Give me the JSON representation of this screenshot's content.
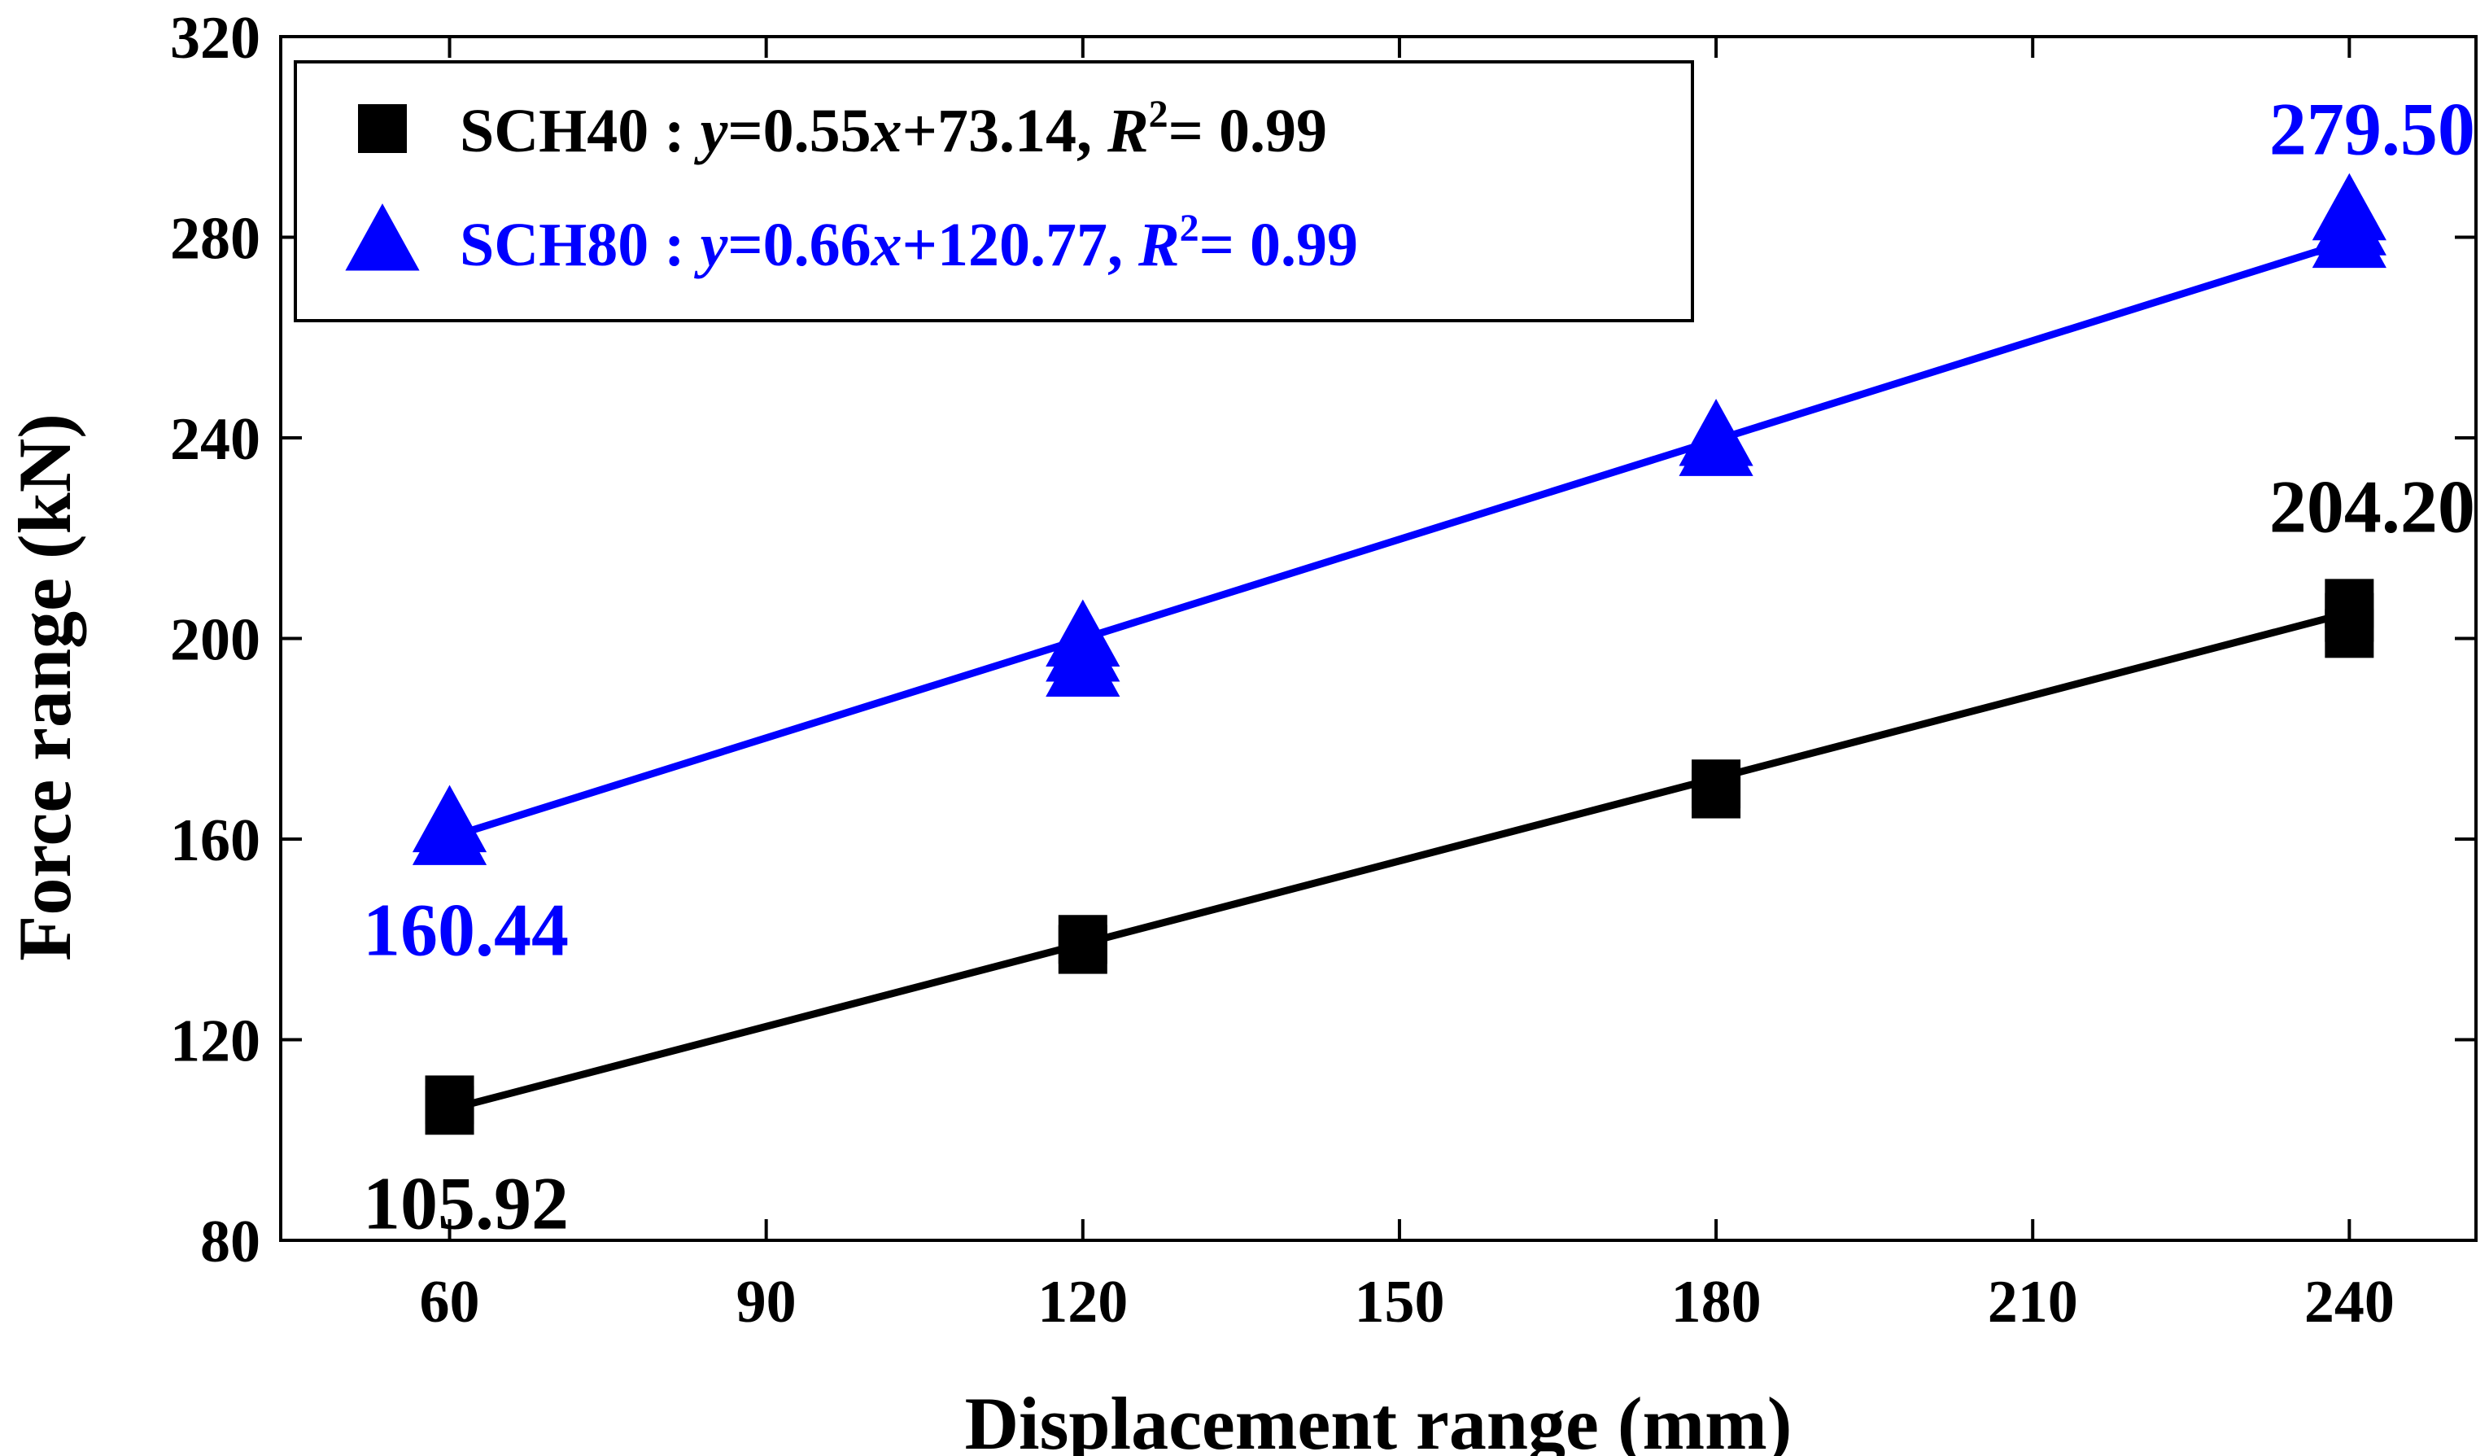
{
  "chart_data": {
    "type": "scatter",
    "xlabel": "Displacement range (mm)",
    "ylabel": "Force range (kN)",
    "xlim": [
      44,
      252
    ],
    "ylim": [
      80,
      320
    ],
    "xticks": [
      60,
      90,
      120,
      150,
      180,
      210,
      240
    ],
    "yticks": [
      80,
      120,
      160,
      200,
      240,
      280,
      320
    ],
    "grid": false,
    "legend_position": "top-left",
    "series": [
      {
        "name": "SCH40",
        "marker": "square",
        "color": "#000000",
        "points": [
          {
            "x": 60,
            "y": 105.92
          },
          {
            "x": 60,
            "y": 108
          },
          {
            "x": 120,
            "y": 138
          },
          {
            "x": 120,
            "y": 140
          },
          {
            "x": 180,
            "y": 169
          },
          {
            "x": 180,
            "y": 171
          },
          {
            "x": 240,
            "y": 201
          },
          {
            "x": 240,
            "y": 204.2
          },
          {
            "x": 240,
            "y": 207
          }
        ],
        "fit": {
          "slope": 0.55,
          "intercept": 73.14
        },
        "legend": {
          "name": "SCH40",
          "separator": " : ",
          "eq_y": "y",
          "eq_mid": "=0.55",
          "eq_x": "x",
          "eq_tail": "+73.14, ",
          "r_letter": "R",
          "r_sup": "2",
          "r_value": "= 0.99"
        },
        "labels": [
          {
            "text": "105.92",
            "x": 60,
            "y": 105.92,
            "anchor": "below"
          },
          {
            "text": "204.20",
            "x": 240,
            "y": 204.2,
            "anchor": "above"
          }
        ]
      },
      {
        "name": "SCH80",
        "marker": "triangle",
        "color": "#0000ff",
        "points": [
          {
            "x": 60,
            "y": 160.44
          },
          {
            "x": 60,
            "y": 163
          },
          {
            "x": 120,
            "y": 194
          },
          {
            "x": 120,
            "y": 197
          },
          {
            "x": 120,
            "y": 200
          },
          {
            "x": 180,
            "y": 238
          },
          {
            "x": 180,
            "y": 240
          },
          {
            "x": 240,
            "y": 279.5
          },
          {
            "x": 240,
            "y": 282
          },
          {
            "x": 240,
            "y": 285
          }
        ],
        "fit": {
          "slope": 0.66,
          "intercept": 120.77
        },
        "legend": {
          "name": "SCH80",
          "separator": " : ",
          "eq_y": "y",
          "eq_mid": "=0.66",
          "eq_x": "x",
          "eq_tail": "+120.77, ",
          "r_letter": "R",
          "r_sup": "2",
          "r_value": "= 0.99"
        },
        "labels": [
          {
            "text": "160.44",
            "x": 60,
            "y": 160.44,
            "anchor": "below"
          },
          {
            "text": "279.50",
            "x": 240,
            "y": 279.5,
            "anchor": "above"
          }
        ]
      }
    ]
  }
}
